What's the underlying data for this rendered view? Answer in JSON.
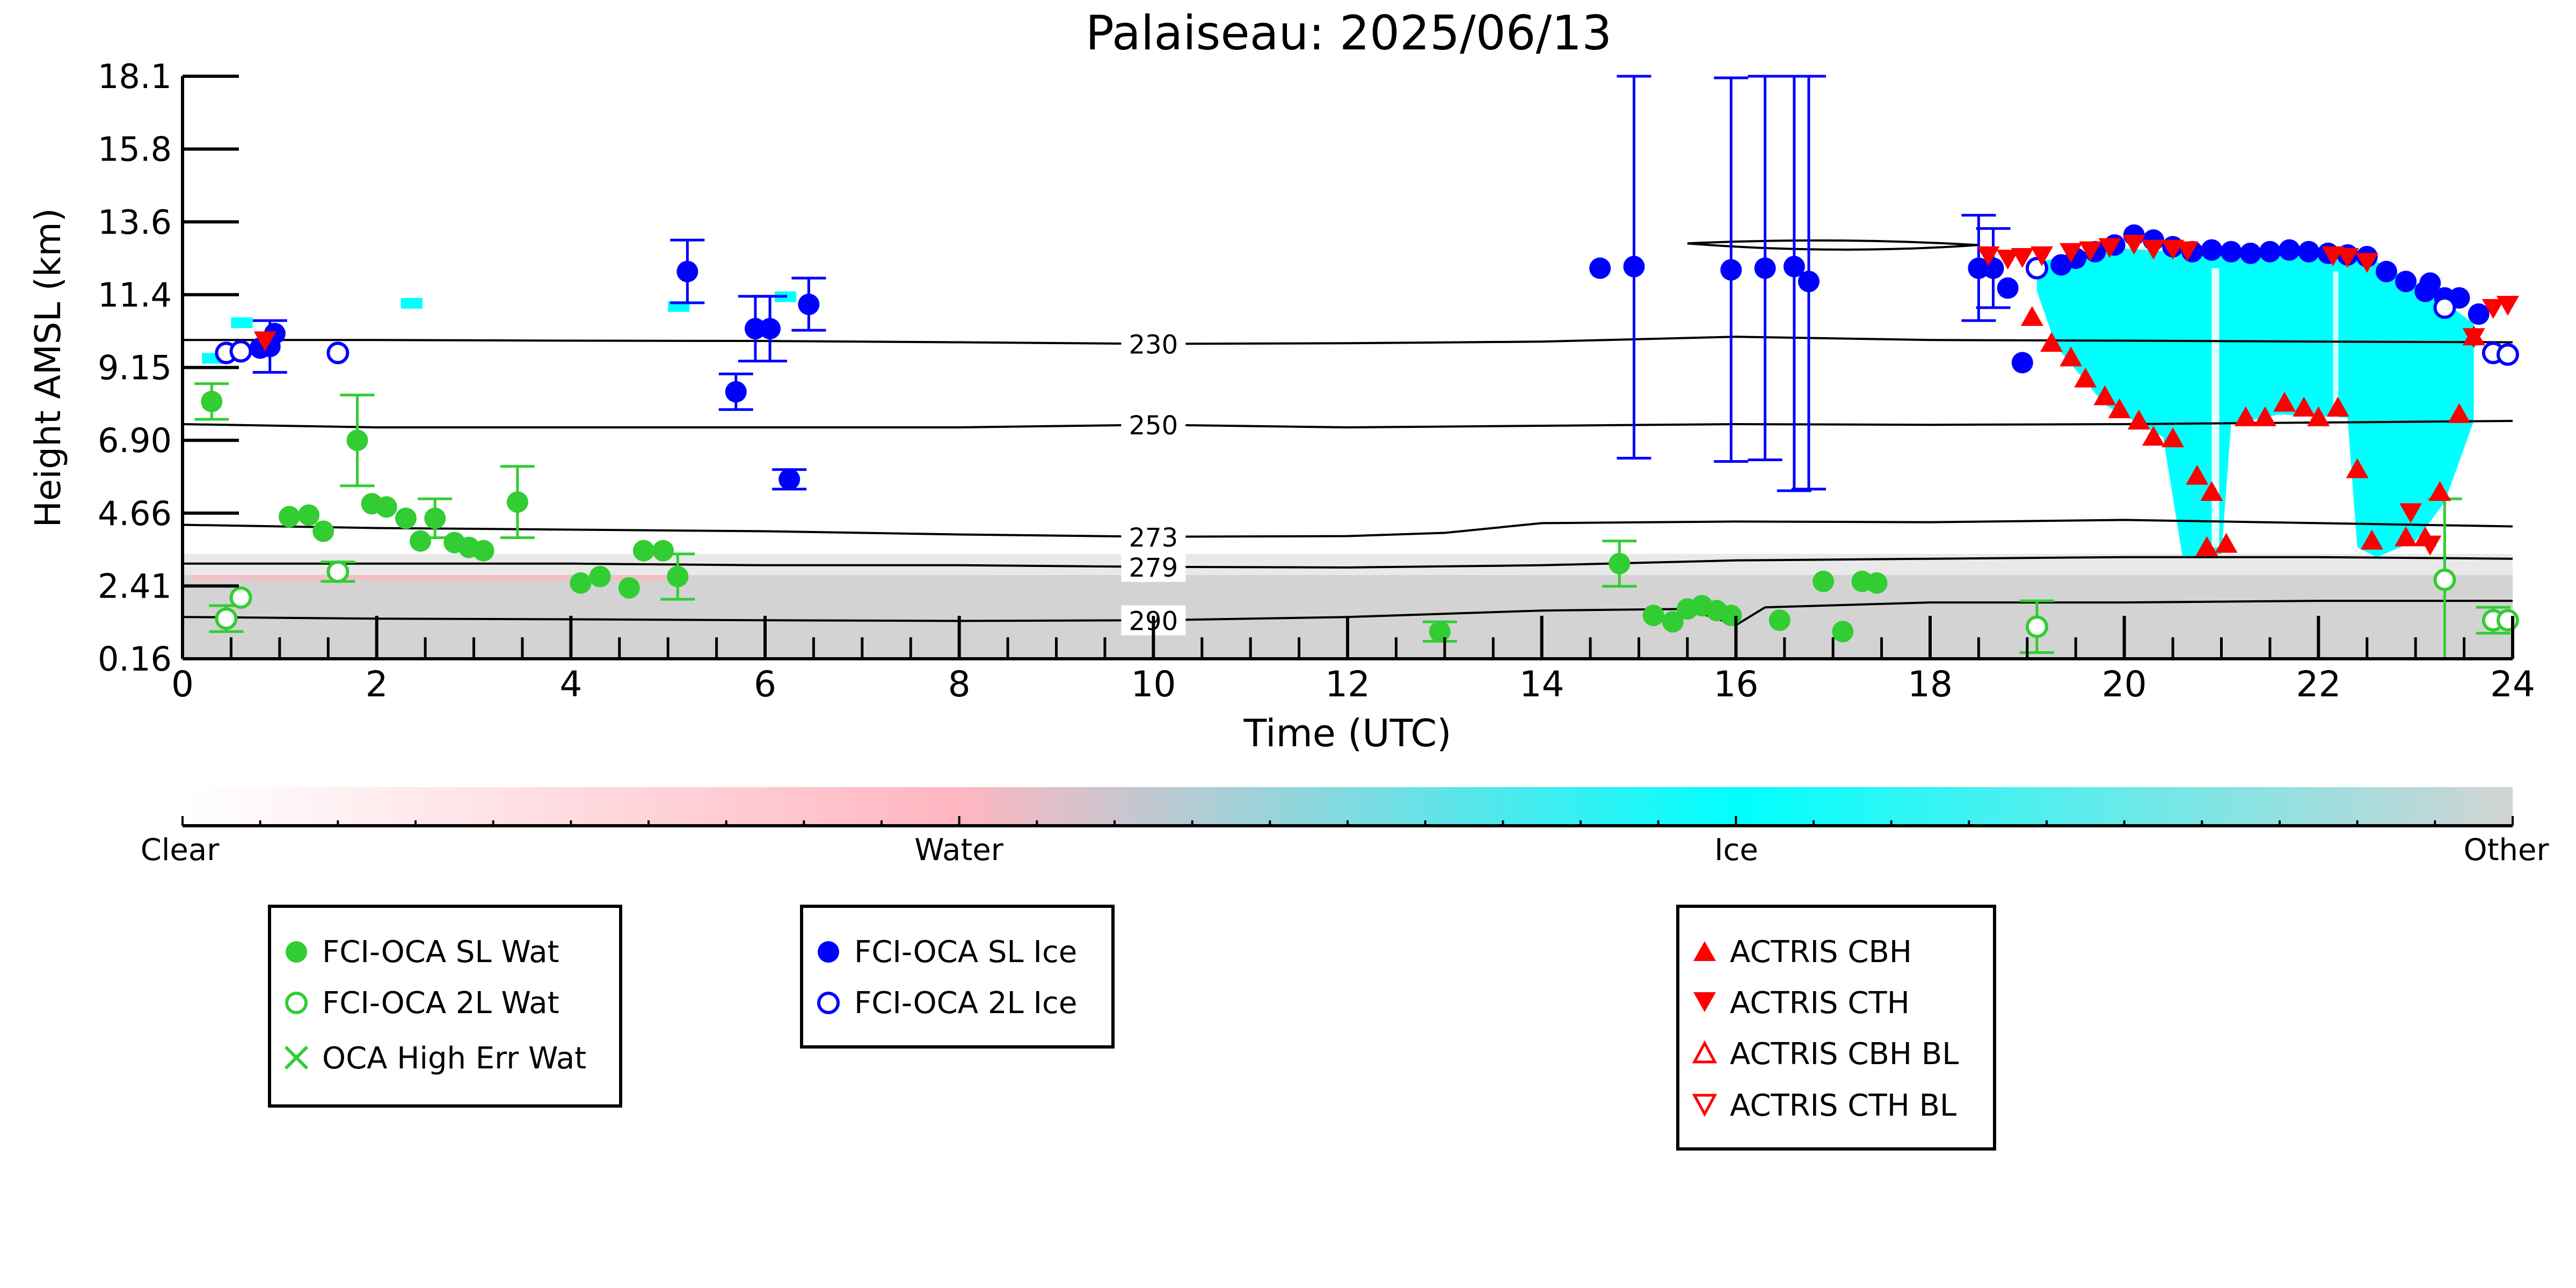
{
  "chart_data": {
    "type": "scatter",
    "title": "Palaiseau: 2025/06/13",
    "xlabel": "Time (UTC)",
    "ylabel": "Height AMSL (km)",
    "xlim": [
      0,
      24
    ],
    "ylim": [
      0.16,
      18.1
    ],
    "x_ticks": [
      "0",
      "2",
      "4",
      "6",
      "8",
      "10",
      "12",
      "14",
      "16",
      "18",
      "20",
      "22",
      "24"
    ],
    "y_ticks": [
      "0.16",
      "2.41",
      "4.66",
      "6.90",
      "9.15",
      "11.4",
      "13.6",
      "15.8",
      "18.1"
    ],
    "colorbar": {
      "labels": [
        "Clear",
        "Water",
        "Ice",
        "Other"
      ],
      "colors": [
        "#ffffff",
        "#ffb6c1",
        "#00ffff",
        "#d3d3d3"
      ]
    },
    "isotherms": [
      {
        "label": "230",
        "x": [
          0,
          2,
          4,
          6,
          8,
          10,
          12,
          14,
          16,
          18,
          20,
          22,
          24
        ],
        "y": [
          10.0,
          10.0,
          9.98,
          9.97,
          9.93,
          9.88,
          9.9,
          9.95,
          10.1,
          10.0,
          9.98,
          9.95,
          9.93
        ]
      },
      {
        "label": "250",
        "x": [
          0,
          2,
          4,
          6,
          8,
          10,
          12,
          14,
          16,
          18,
          20,
          22,
          24
        ],
        "y": [
          7.4,
          7.3,
          7.3,
          7.3,
          7.3,
          7.38,
          7.3,
          7.35,
          7.4,
          7.38,
          7.4,
          7.45,
          7.5
        ]
      },
      {
        "label": "273",
        "x": [
          0,
          2,
          4,
          6,
          8,
          10,
          12,
          13,
          14,
          16,
          18,
          20,
          22,
          24
        ],
        "y": [
          4.3,
          4.2,
          4.15,
          4.1,
          4.0,
          3.93,
          3.95,
          4.05,
          4.35,
          4.4,
          4.38,
          4.45,
          4.35,
          4.25
        ]
      },
      {
        "label": "279",
        "x": [
          0,
          2,
          4,
          6,
          8,
          10,
          12,
          14,
          16,
          18,
          20,
          22,
          24
        ],
        "y": [
          3.1,
          3.1,
          3.1,
          3.05,
          3.05,
          3.0,
          2.98,
          3.05,
          3.2,
          3.25,
          3.3,
          3.3,
          3.25
        ]
      },
      {
        "label": "290",
        "x": [
          0,
          2,
          4,
          6,
          8,
          10,
          12,
          14,
          15.5,
          16,
          16.3,
          18,
          20,
          22,
          24
        ],
        "y": [
          1.45,
          1.4,
          1.38,
          1.35,
          1.33,
          1.35,
          1.45,
          1.65,
          1.7,
          1.2,
          1.75,
          1.9,
          1.9,
          1.95,
          1.95
        ]
      }
    ],
    "series": [
      {
        "name": "FCI-OCA SL Wat",
        "color": "#32cd32",
        "marker": "filled-circle",
        "points": [
          [
            0.3,
            8.1
          ],
          [
            1.1,
            4.55
          ],
          [
            1.3,
            4.6
          ],
          [
            1.45,
            4.1
          ],
          [
            1.8,
            6.9
          ],
          [
            1.95,
            4.95
          ],
          [
            2.1,
            4.85
          ],
          [
            2.3,
            4.5
          ],
          [
            2.45,
            3.8
          ],
          [
            2.6,
            4.5
          ],
          [
            2.8,
            3.75
          ],
          [
            2.95,
            3.6
          ],
          [
            3.1,
            3.5
          ],
          [
            3.45,
            5.0
          ],
          [
            4.1,
            2.5
          ],
          [
            4.3,
            2.7
          ],
          [
            4.6,
            2.35
          ],
          [
            4.75,
            3.5
          ],
          [
            4.95,
            3.5
          ],
          [
            5.1,
            2.7
          ],
          [
            12.95,
            1.0
          ],
          [
            14.8,
            3.1
          ],
          [
            15.15,
            1.5
          ],
          [
            15.35,
            1.3
          ],
          [
            15.5,
            1.7
          ],
          [
            15.65,
            1.8
          ],
          [
            15.8,
            1.65
          ],
          [
            15.95,
            1.5
          ],
          [
            16.45,
            1.35
          ],
          [
            16.9,
            2.55
          ],
          [
            17.1,
            1.0
          ],
          [
            17.3,
            2.55
          ],
          [
            17.45,
            2.5
          ]
        ],
        "errors": [
          [
            0.3,
            0.55
          ],
          [
            1.8,
            1.4
          ],
          [
            2.6,
            0.6
          ],
          [
            3.45,
            1.1
          ],
          [
            5.1,
            0.7
          ],
          [
            12.95,
            0.3
          ],
          [
            14.8,
            0.7
          ]
        ]
      },
      {
        "name": "FCI-OCA 2L Wat",
        "color": "#32cd32",
        "marker": "open-circle",
        "points": [
          [
            0.45,
            1.4
          ],
          [
            0.6,
            2.05
          ],
          [
            1.6,
            2.85
          ],
          [
            19.1,
            1.15
          ],
          [
            23.3,
            2.6
          ],
          [
            23.8,
            1.35
          ],
          [
            23.95,
            1.35
          ]
        ],
        "errors": [
          [
            0.45,
            0.4
          ],
          [
            1.6,
            0.3
          ],
          [
            19.1,
            0.8
          ],
          [
            23.3,
            2.5
          ],
          [
            23.8,
            0.4
          ]
        ]
      },
      {
        "name": "OCA High Err Wat",
        "color": "#32cd32",
        "marker": "x",
        "points": []
      },
      {
        "name": "FCI-OCA SL Ice",
        "color": "#0000ff",
        "marker": "filled-circle",
        "points": [
          [
            0.8,
            9.75
          ],
          [
            0.9,
            9.8
          ],
          [
            0.95,
            10.2
          ],
          [
            5.2,
            12.1
          ],
          [
            5.7,
            8.4
          ],
          [
            5.9,
            10.35
          ],
          [
            6.05,
            10.35
          ],
          [
            6.25,
            5.7
          ],
          [
            6.45,
            11.1
          ],
          [
            14.6,
            12.2
          ],
          [
            14.95,
            12.25
          ],
          [
            15.95,
            12.15
          ],
          [
            16.3,
            12.2
          ],
          [
            16.6,
            12.25
          ],
          [
            16.75,
            11.8
          ],
          [
            18.5,
            12.2
          ],
          [
            18.65,
            12.2
          ],
          [
            18.8,
            11.6
          ],
          [
            18.95,
            9.3
          ],
          [
            19.35,
            12.3
          ],
          [
            19.5,
            12.5
          ],
          [
            19.7,
            12.7
          ],
          [
            19.9,
            12.9
          ],
          [
            20.1,
            13.2
          ],
          [
            20.3,
            13.05
          ],
          [
            20.5,
            12.85
          ],
          [
            20.7,
            12.7
          ],
          [
            20.9,
            12.75
          ],
          [
            21.1,
            12.7
          ],
          [
            21.3,
            12.65
          ],
          [
            21.5,
            12.7
          ],
          [
            21.7,
            12.75
          ],
          [
            21.9,
            12.7
          ],
          [
            22.1,
            12.65
          ],
          [
            22.3,
            12.6
          ],
          [
            22.5,
            12.55
          ],
          [
            22.7,
            12.1
          ],
          [
            22.9,
            11.8
          ],
          [
            23.1,
            11.5
          ],
          [
            23.3,
            11.3
          ],
          [
            23.15,
            11.75
          ],
          [
            23.45,
            11.3
          ],
          [
            23.65,
            10.8
          ]
        ],
        "errors": [
          [
            0.9,
            0.8
          ],
          [
            5.2,
            0.95
          ],
          [
            5.7,
            0.55
          ],
          [
            5.9,
            1.0
          ],
          [
            6.05,
            1.0
          ],
          [
            6.25,
            0.3
          ],
          [
            6.45,
            0.8
          ],
          [
            14.95,
            5.9
          ],
          [
            15.95,
            5.9
          ],
          [
            16.3,
            5.9
          ],
          [
            16.6,
            6.9
          ],
          [
            16.75,
            6.4
          ],
          [
            18.5,
            1.6
          ],
          [
            18.65,
            1.2
          ]
        ]
      },
      {
        "name": "FCI-OCA 2L Ice",
        "color": "#0000ff",
        "marker": "open-circle",
        "points": [
          [
            0.45,
            9.6
          ],
          [
            0.6,
            9.65
          ],
          [
            1.6,
            9.6
          ],
          [
            19.1,
            12.2
          ],
          [
            23.3,
            11.0
          ],
          [
            23.8,
            9.6
          ],
          [
            23.95,
            9.55
          ]
        ]
      },
      {
        "name": "ACTRIS CBH",
        "color": "#ff0000",
        "marker": "triangle-up",
        "points": [
          [
            19.05,
            10.7
          ],
          [
            19.25,
            9.9
          ],
          [
            19.45,
            9.45
          ],
          [
            19.6,
            8.8
          ],
          [
            19.8,
            8.25
          ],
          [
            19.95,
            7.85
          ],
          [
            20.15,
            7.5
          ],
          [
            20.3,
            7.0
          ],
          [
            20.5,
            6.95
          ],
          [
            20.75,
            5.8
          ],
          [
            20.9,
            5.3
          ],
          [
            20.85,
            3.6
          ],
          [
            21.05,
            3.7
          ],
          [
            21.25,
            7.6
          ],
          [
            21.45,
            7.6
          ],
          [
            21.65,
            8.05
          ],
          [
            21.85,
            7.9
          ],
          [
            22.0,
            7.6
          ],
          [
            22.2,
            7.9
          ],
          [
            22.4,
            6.0
          ],
          [
            22.55,
            3.8
          ],
          [
            22.9,
            3.9
          ],
          [
            23.1,
            3.9
          ],
          [
            23.25,
            5.3
          ],
          [
            23.45,
            7.7
          ],
          [
            23.6,
            10.1
          ]
        ]
      },
      {
        "name": "ACTRIS CTH",
        "color": "#ff0000",
        "marker": "triangle-down",
        "points": [
          [
            0.85,
            10.0
          ],
          [
            18.6,
            12.6
          ],
          [
            18.8,
            12.5
          ],
          [
            18.95,
            12.55
          ],
          [
            19.15,
            12.6
          ],
          [
            19.45,
            12.7
          ],
          [
            19.65,
            12.75
          ],
          [
            19.85,
            12.85
          ],
          [
            20.1,
            12.95
          ],
          [
            20.3,
            12.8
          ],
          [
            20.5,
            12.8
          ],
          [
            20.65,
            12.75
          ],
          [
            22.15,
            12.6
          ],
          [
            22.3,
            12.55
          ],
          [
            22.5,
            12.4
          ],
          [
            22.95,
            4.7
          ],
          [
            23.15,
            3.7
          ],
          [
            23.6,
            10.1
          ],
          [
            23.8,
            11.0
          ],
          [
            23.95,
            11.1
          ]
        ]
      },
      {
        "name": "ACTRIS CBH BL",
        "color": "#ff0000",
        "marker": "open-triangle-up",
        "points": []
      },
      {
        "name": "ACTRIS CTH BL",
        "color": "#ff0000",
        "marker": "open-triangle-down",
        "points": []
      }
    ],
    "legend": {
      "box1": [
        "FCI-OCA SL Wat",
        "FCI-OCA 2L Wat",
        "OCA High Err Wat"
      ],
      "box2": [
        "FCI-OCA SL Ice",
        "FCI-OCA 2L Ice"
      ],
      "box3": [
        "ACTRIS CBH",
        "ACTRIS CTH",
        "ACTRIS CBH BL",
        "ACTRIS CTH BL"
      ]
    }
  }
}
